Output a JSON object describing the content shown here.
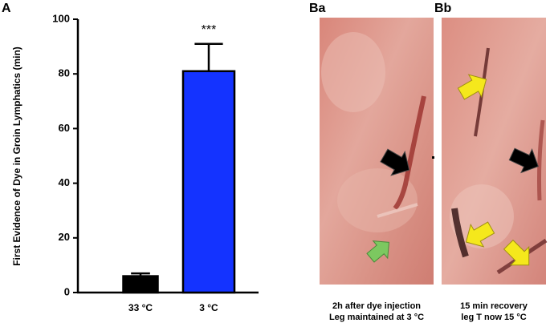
{
  "chart_data": {
    "type": "bar",
    "panel_label": "A",
    "y_label": "First Evidence of Dye in Groin Lymphatics (min)",
    "categories": [
      "33 °C",
      "3 °C"
    ],
    "values": [
      6,
      81
    ],
    "errors": [
      1,
      10
    ],
    "colors": [
      "#000000",
      "#1433ff"
    ],
    "annotation": "***",
    "ylim": [
      0,
      100
    ],
    "yticks": [
      0,
      20,
      40,
      60,
      80,
      100
    ],
    "grid": false
  },
  "panels": [
    {
      "label": "Ba",
      "caption": [
        "2h after dye injection",
        "Leg maintained at 3 °C"
      ]
    },
    {
      "label": "Bb",
      "caption": [
        "15 min recovery",
        "leg T now 15 °C"
      ]
    }
  ]
}
